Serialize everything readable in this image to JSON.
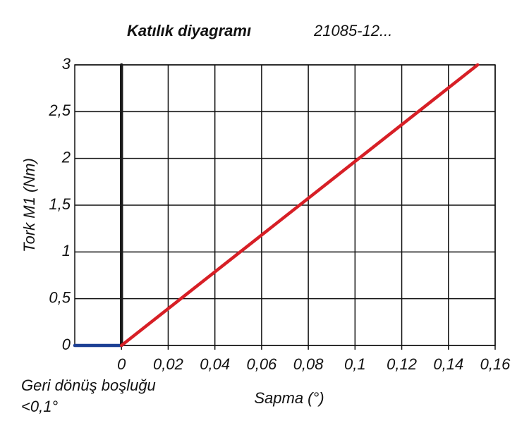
{
  "chart_data": {
    "type": "line",
    "title": "Katılık diyagramı",
    "subtitle": "21085-12...",
    "y_label": "Tork M1 (Nm)",
    "x_label": "Sapma (°)",
    "annotation": [
      "Geri dönüş boşluğu",
      "<0,1°"
    ],
    "xlim": [
      -0.02,
      0.16
    ],
    "ylim": [
      0,
      3
    ],
    "xticks": [
      0,
      {
        "value": 0.02,
        "label": "0,02"
      },
      {
        "value": 0.04,
        "label": "0,04"
      },
      {
        "value": 0.06,
        "label": "0,06"
      },
      {
        "value": 0.08,
        "label": "0,08"
      },
      {
        "value": 0.1,
        "label": "0,1"
      },
      {
        "value": 0.12,
        "label": "0,12"
      },
      {
        "value": 0.14,
        "label": "0,14"
      },
      {
        "value": 0.16,
        "label": "0,16"
      }
    ],
    "yticks": [
      0,
      {
        "value": 0.5,
        "label": "0,5"
      },
      1,
      {
        "value": 1.5,
        "label": "1,5"
      },
      2,
      {
        "value": 2.5,
        "label": "2,5"
      },
      3
    ],
    "grid": true,
    "series": [
      {
        "color": "#1c3f94",
        "x": [
          -0.02,
          0
        ],
        "values": [
          0,
          0
        ]
      },
      {
        "color": "#1a1a1a",
        "x": [
          0,
          0
        ],
        "values": [
          0,
          3
        ]
      },
      {
        "color": "#d71f26",
        "x": [
          0,
          0.1525
        ],
        "values": [
          0,
          3
        ]
      }
    ]
  }
}
